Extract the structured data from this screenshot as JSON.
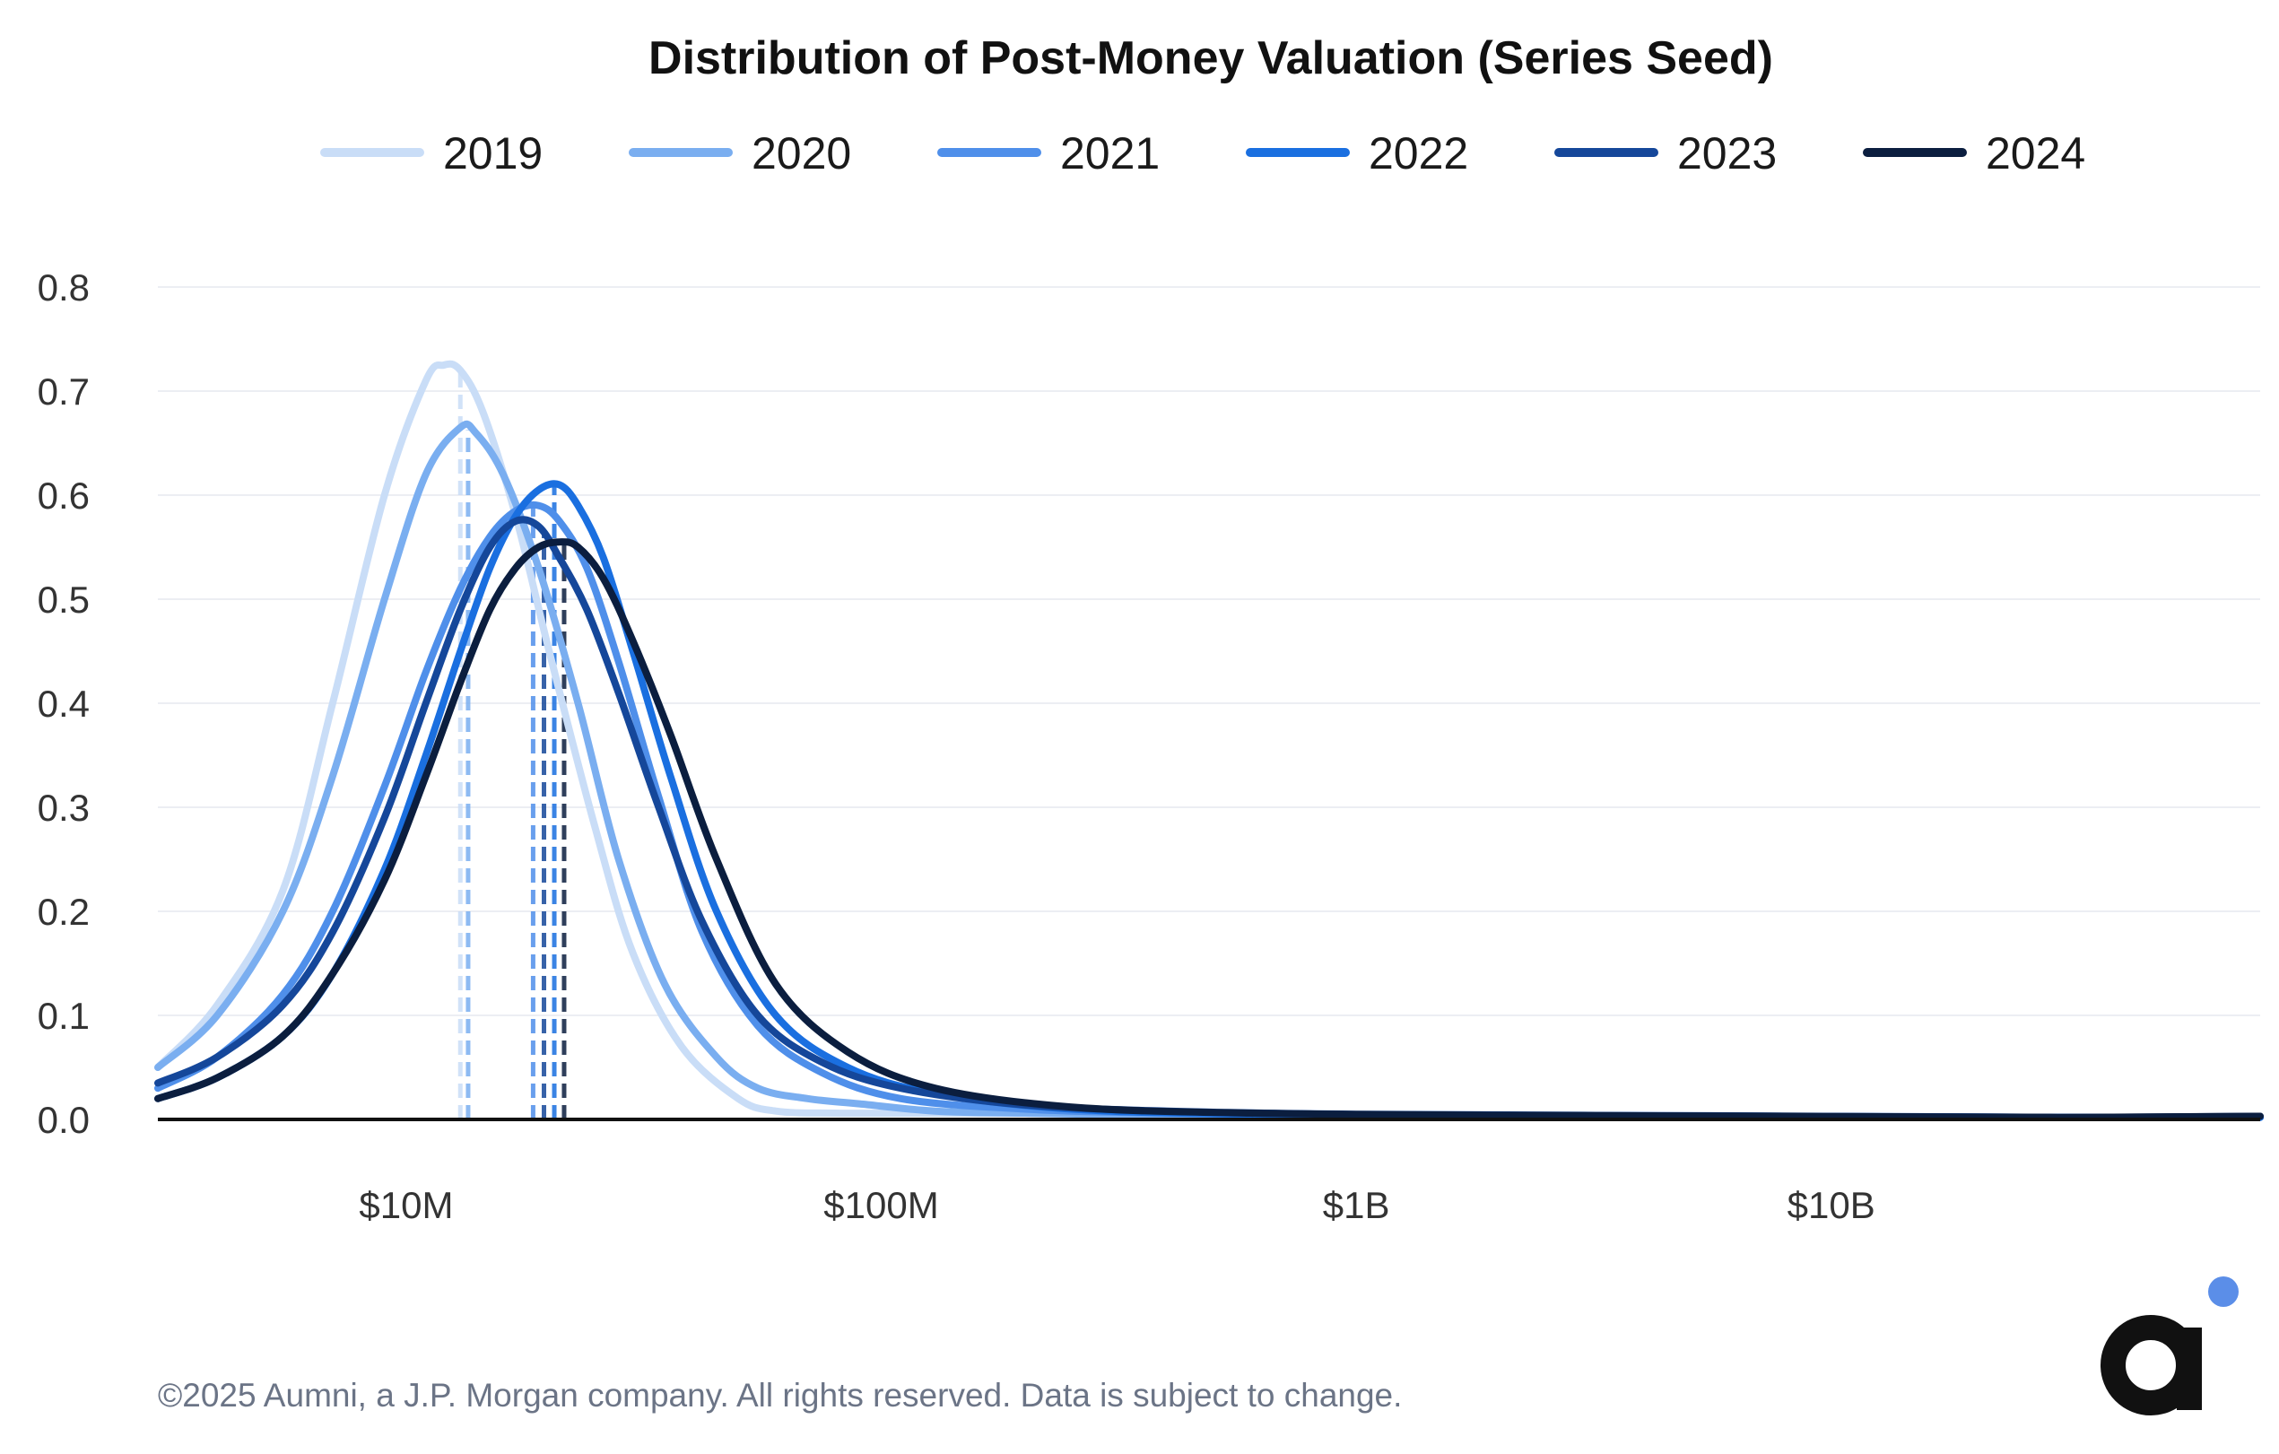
{
  "footer": "©2025 Aumni, a J.P. Morgan company. All rights reserved. Data is subject to change.",
  "logo": {
    "name": "aumni-logo",
    "dot_color": "#5b8ee8",
    "letter": "a",
    "color": "#111111"
  },
  "chart_data": {
    "type": "line",
    "title": "Distribution of Post-Money Valuation (Series Seed)",
    "xlabel": "",
    "ylabel": "",
    "x_scale": "log10",
    "x_unit": "USD",
    "xlim": [
      3000000,
      80000000000
    ],
    "ylim": [
      0,
      0.8
    ],
    "grid": true,
    "legend_position": "top",
    "yticks": [
      {
        "value": 0.0,
        "label": "0.0"
      },
      {
        "value": 0.1,
        "label": "0.1"
      },
      {
        "value": 0.2,
        "label": "0.2"
      },
      {
        "value": 0.3,
        "label": "0.3"
      },
      {
        "value": 0.4,
        "label": "0.4"
      },
      {
        "value": 0.5,
        "label": "0.5"
      },
      {
        "value": 0.6,
        "label": "0.6"
      },
      {
        "value": 0.7,
        "label": "0.7"
      },
      {
        "value": 0.8,
        "label": "0.8"
      }
    ],
    "xticks": [
      {
        "value": 10000000,
        "label": "$10M"
      },
      {
        "value": 100000000,
        "label": "$100M"
      },
      {
        "value": 1000000000,
        "label": "$1B"
      },
      {
        "value": 10000000000,
        "label": "$10B"
      }
    ],
    "series": [
      {
        "name": "2019",
        "color": "#c9ddf7",
        "median": 13000000,
        "x": [
          3000000,
          4000000,
          5500000,
          7000000,
          9000000,
          11000000,
          12000000,
          13000000,
          14500000,
          17000000,
          20000000,
          25000000,
          30000000,
          38000000,
          50000000,
          60000000,
          80000000,
          120000000,
          200000000,
          400000000,
          1000000000,
          3000000000,
          10000000000,
          30000000000,
          80000000000
        ],
        "y": [
          0.05,
          0.11,
          0.22,
          0.4,
          0.6,
          0.71,
          0.725,
          0.72,
          0.68,
          0.58,
          0.45,
          0.28,
          0.16,
          0.07,
          0.02,
          0.008,
          0.006,
          0.006,
          0.006,
          0.005,
          0.004,
          0.003,
          0.002,
          0.002,
          0.002
        ]
      },
      {
        "name": "2020",
        "color": "#7aaef0",
        "median": 13500000,
        "x": [
          3000000,
          4000000,
          5500000,
          7000000,
          9000000,
          11000000,
          13000000,
          14000000,
          16000000,
          19000000,
          23000000,
          28000000,
          35000000,
          45000000,
          55000000,
          70000000,
          90000000,
          130000000,
          200000000,
          400000000,
          1000000000,
          3000000000,
          10000000000,
          30000000000,
          80000000000
        ],
        "y": [
          0.05,
          0.1,
          0.2,
          0.33,
          0.5,
          0.62,
          0.665,
          0.66,
          0.62,
          0.53,
          0.4,
          0.25,
          0.13,
          0.06,
          0.03,
          0.02,
          0.015,
          0.008,
          0.006,
          0.004,
          0.004,
          0.003,
          0.002,
          0.002,
          0.002
        ]
      },
      {
        "name": "2021",
        "color": "#4f8fea",
        "median": 18500000,
        "x": [
          3000000,
          4000000,
          5500000,
          7000000,
          9000000,
          11000000,
          13000000,
          15000000,
          17000000,
          19000000,
          21000000,
          24000000,
          28000000,
          34000000,
          42000000,
          55000000,
          75000000,
          110000000,
          200000000,
          400000000,
          1000000000,
          3000000000,
          10000000000,
          30000000000,
          80000000000
        ],
        "y": [
          0.03,
          0.06,
          0.12,
          0.2,
          0.32,
          0.43,
          0.51,
          0.56,
          0.585,
          0.59,
          0.575,
          0.53,
          0.44,
          0.31,
          0.18,
          0.09,
          0.045,
          0.02,
          0.01,
          0.006,
          0.004,
          0.003,
          0.002,
          0.002,
          0.002
        ]
      },
      {
        "name": "2022",
        "color": "#1a6fe0",
        "median": 20500000,
        "x": [
          3000000,
          4000000,
          5500000,
          7000000,
          9000000,
          11000000,
          13000000,
          15000000,
          17000000,
          19000000,
          21000000,
          23000000,
          26000000,
          30000000,
          36000000,
          45000000,
          60000000,
          85000000,
          130000000,
          250000000,
          600000000,
          2000000000,
          8000000000,
          30000000000,
          80000000000
        ],
        "y": [
          0.02,
          0.04,
          0.08,
          0.14,
          0.24,
          0.35,
          0.45,
          0.53,
          0.58,
          0.605,
          0.61,
          0.59,
          0.54,
          0.45,
          0.33,
          0.2,
          0.1,
          0.05,
          0.025,
          0.01,
          0.005,
          0.004,
          0.003,
          0.002,
          0.002
        ]
      },
      {
        "name": "2023",
        "color": "#15479a",
        "median": 19500000,
        "x": [
          3000000,
          4000000,
          5500000,
          7000000,
          9000000,
          11000000,
          13000000,
          15000000,
          17000000,
          19000000,
          21000000,
          24000000,
          28000000,
          34000000,
          42000000,
          55000000,
          75000000,
          110000000,
          200000000,
          400000000,
          1000000000,
          3000000000,
          10000000000,
          30000000000,
          80000000000
        ],
        "y": [
          0.035,
          0.06,
          0.11,
          0.18,
          0.29,
          0.4,
          0.49,
          0.55,
          0.575,
          0.57,
          0.54,
          0.49,
          0.41,
          0.3,
          0.19,
          0.1,
          0.055,
          0.03,
          0.014,
          0.008,
          0.005,
          0.004,
          0.003,
          0.002,
          0.003
        ]
      },
      {
        "name": "2024",
        "color": "#0b1e3f",
        "median": 21500000,
        "x": [
          3000000,
          4000000,
          5500000,
          7000000,
          9000000,
          11000000,
          13000000,
          15000000,
          17000000,
          19000000,
          21000000,
          23000000,
          26000000,
          30000000,
          36000000,
          45000000,
          60000000,
          85000000,
          130000000,
          250000000,
          600000000,
          2000000000,
          8000000000,
          30000000000,
          80000000000
        ],
        "y": [
          0.02,
          0.04,
          0.08,
          0.14,
          0.23,
          0.33,
          0.42,
          0.49,
          0.53,
          0.55,
          0.555,
          0.55,
          0.52,
          0.46,
          0.37,
          0.25,
          0.13,
          0.065,
          0.03,
          0.012,
          0.006,
          0.004,
          0.003,
          0.002,
          0.003
        ]
      }
    ]
  }
}
